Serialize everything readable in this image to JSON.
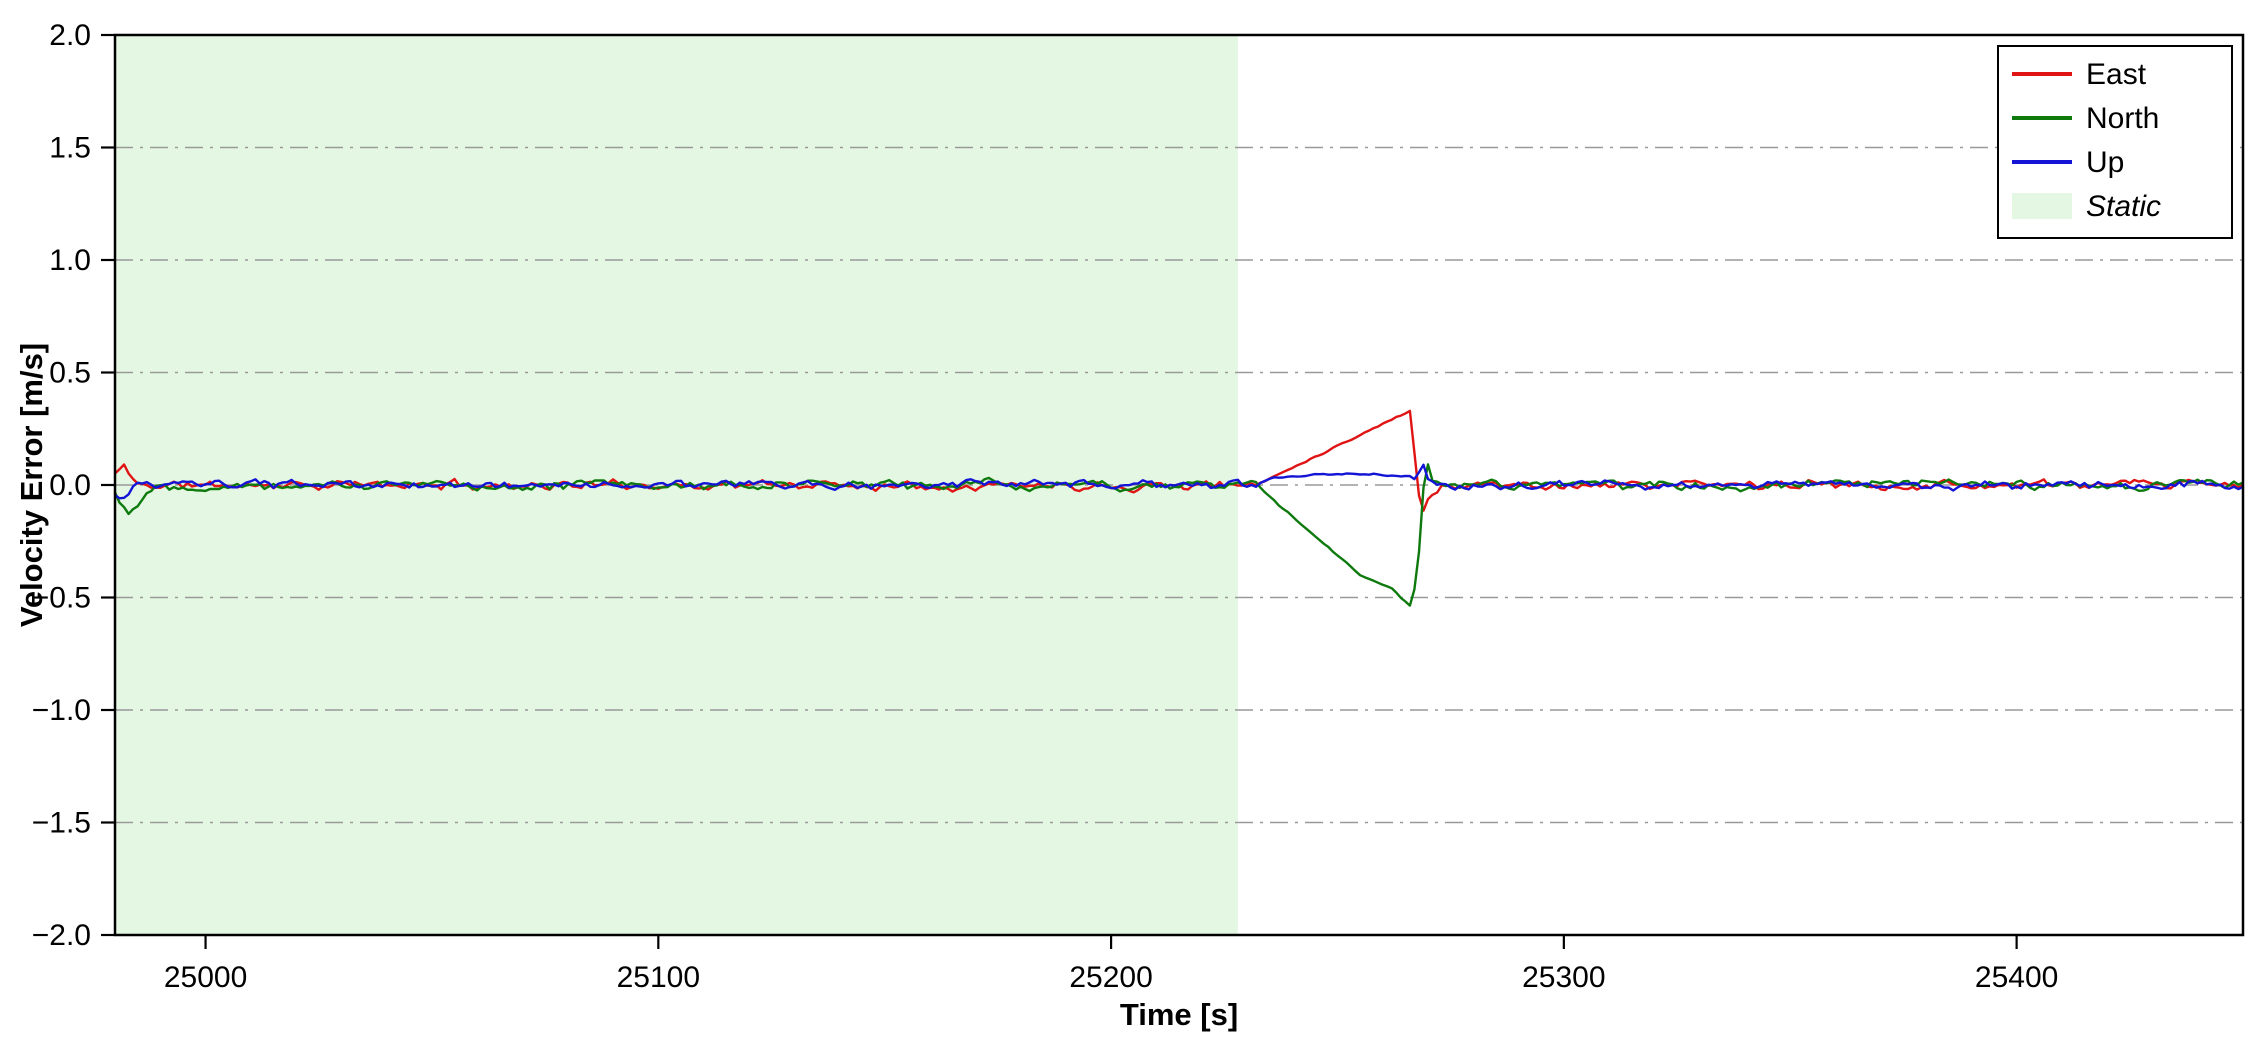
{
  "page": {
    "background": "#ffffff"
  },
  "chart_data": {
    "type": "line",
    "title": "",
    "xlabel": "Time [s]",
    "ylabel": "Velocity Error [m/s]",
    "xlim": [
      24980,
      25450
    ],
    "ylim": [
      -2.0,
      2.0
    ],
    "xticks": [
      25000,
      25100,
      25200,
      25300,
      25400
    ],
    "yticks": [
      -2.0,
      -1.5,
      -1.0,
      -0.5,
      0.0,
      0.5,
      1.0,
      1.5,
      2.0
    ],
    "grid": {
      "horizontal": true,
      "vertical": false,
      "style": "dash-dot",
      "color": "#999999"
    },
    "frame_color": "#000000",
    "regions": [
      {
        "label": "Static",
        "x0": 24980,
        "x1": 25228,
        "color": "#e4f7e2"
      }
    ],
    "legend": {
      "position": "top-right",
      "entries": [
        {
          "label": "East",
          "color": "#e01414",
          "type": "line"
        },
        {
          "label": "North",
          "color": "#0e7a0e",
          "type": "line"
        },
        {
          "label": "Up",
          "color": "#1414d6",
          "type": "line"
        },
        {
          "label": "Static",
          "color": "#e4f7e2",
          "type": "patch",
          "style": "italic"
        }
      ]
    },
    "sample_step": 1,
    "series": [
      {
        "name": "East",
        "color": "#e01414",
        "noise_std": 0.02,
        "seed": 11,
        "quiet": [
          25233,
          25271
        ],
        "anchors": [
          [
            24980,
            0.05
          ],
          [
            24982,
            0.08
          ],
          [
            24985,
            0.0
          ],
          [
            25232,
            0.0
          ],
          [
            25266,
            0.33
          ],
          [
            25267.5,
            0.05
          ],
          [
            25268.5,
            -0.14
          ],
          [
            25270,
            -0.06
          ],
          [
            25273,
            0.0
          ]
        ]
      },
      {
        "name": "North",
        "color": "#0e7a0e",
        "noise_std": 0.021,
        "seed": 22,
        "quiet": [
          25233,
          25271
        ],
        "anchors": [
          [
            24980,
            -0.03
          ],
          [
            24983,
            -0.13
          ],
          [
            24987,
            -0.02
          ],
          [
            24990,
            0.0
          ],
          [
            25232,
            0.0
          ],
          [
            25255,
            -0.4
          ],
          [
            25262,
            -0.46
          ],
          [
            25266.5,
            -0.55
          ],
          [
            25268,
            -0.3
          ],
          [
            25269.5,
            0.13
          ],
          [
            25271,
            0.02
          ],
          [
            25274,
            0.0
          ]
        ]
      },
      {
        "name": "Up",
        "color": "#1414d6",
        "noise_std": 0.018,
        "seed": 33,
        "quiet": [
          25233,
          25267
        ],
        "anchors": [
          [
            24980,
            -0.05
          ],
          [
            24982,
            -0.06
          ],
          [
            24985,
            0.0
          ],
          [
            25232,
            0.0
          ],
          [
            25236,
            0.03
          ],
          [
            25244,
            0.045
          ],
          [
            25258,
            0.05
          ],
          [
            25263,
            0.04
          ],
          [
            25266,
            0.04
          ],
          [
            25267.5,
            0.02
          ],
          [
            25268.5,
            0.1
          ],
          [
            25270,
            0.02
          ],
          [
            25273,
            0.0
          ]
        ]
      }
    ]
  }
}
